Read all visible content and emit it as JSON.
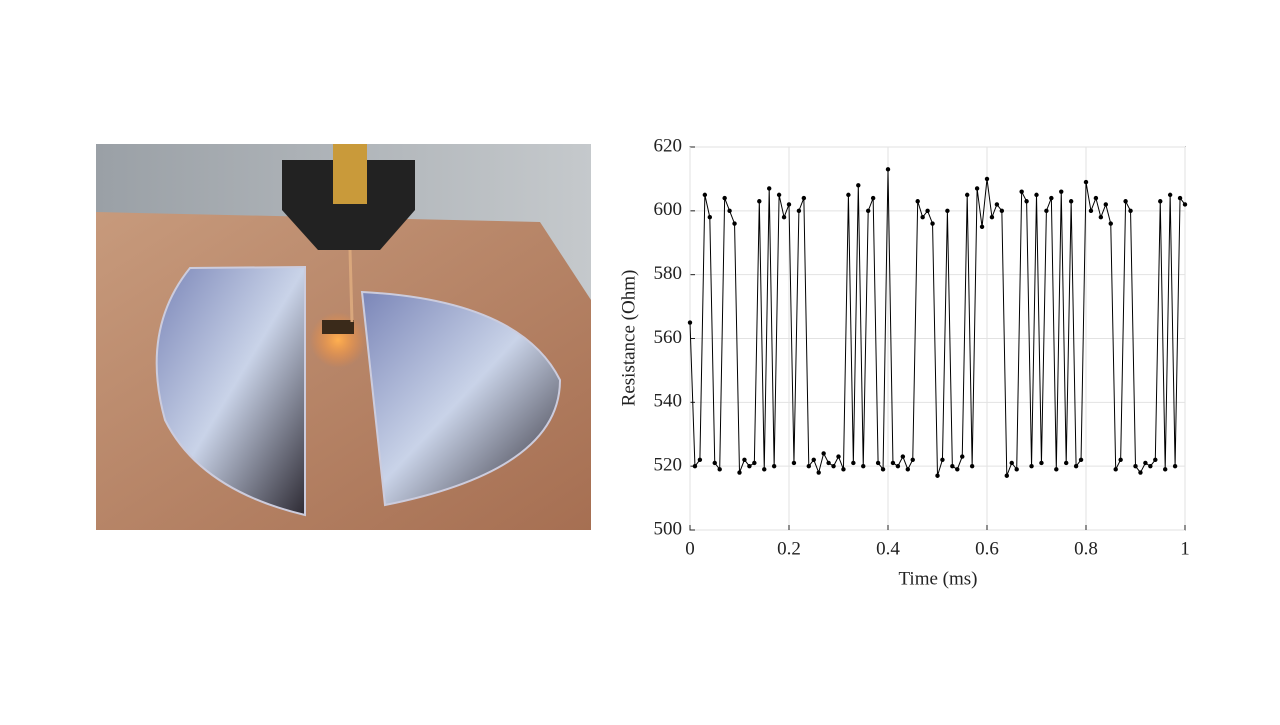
{
  "chart_data": {
    "type": "line",
    "x_label": "Time (ms)",
    "y_label": "Resistance (Ohm)",
    "color": "#000000",
    "markers": true,
    "grid": true,
    "xlim": [
      0,
      1
    ],
    "xticks": [
      0,
      0.2,
      0.4,
      0.6,
      0.8,
      1
    ],
    "ylim": [
      500,
      620
    ],
    "yticks": [
      500,
      520,
      540,
      560,
      580,
      600,
      620
    ],
    "x": [
      0,
      0.01,
      0.02,
      0.03,
      0.04,
      0.05,
      0.06,
      0.07,
      0.08,
      0.09,
      0.1,
      0.11,
      0.12,
      0.13,
      0.14,
      0.15,
      0.16,
      0.17,
      0.18,
      0.19,
      0.2,
      0.21,
      0.22,
      0.23,
      0.24,
      0.25,
      0.26,
      0.27,
      0.28,
      0.29,
      0.3,
      0.31,
      0.32,
      0.33,
      0.34,
      0.35,
      0.36,
      0.37,
      0.38,
      0.39,
      0.4,
      0.41,
      0.42,
      0.43,
      0.44,
      0.45,
      0.46,
      0.47,
      0.48,
      0.49,
      0.5,
      0.51,
      0.52,
      0.53,
      0.54,
      0.55,
      0.56,
      0.57,
      0.58,
      0.59,
      0.6,
      0.61,
      0.62,
      0.63,
      0.64,
      0.65,
      0.66,
      0.67,
      0.68,
      0.69,
      0.7,
      0.71,
      0.72,
      0.73,
      0.74,
      0.75,
      0.76,
      0.77,
      0.78,
      0.79,
      0.8,
      0.81,
      0.82,
      0.83,
      0.84,
      0.85,
      0.86,
      0.87,
      0.88,
      0.89,
      0.9,
      0.91,
      0.92,
      0.93,
      0.94,
      0.95,
      0.96,
      0.97,
      0.98,
      0.99,
      1
    ],
    "values": [
      565,
      520,
      522,
      605,
      598,
      521,
      519,
      604,
      600,
      596,
      518,
      522,
      520,
      521,
      603,
      519,
      607,
      520,
      605,
      598,
      602,
      521,
      600,
      604,
      520,
      522,
      518,
      524,
      521,
      520,
      523,
      519,
      605,
      521,
      608,
      520,
      600,
      604,
      521,
      519,
      613,
      521,
      520,
      523,
      519,
      522,
      603,
      598,
      600,
      596,
      517,
      522,
      600,
      520,
      519,
      523,
      605,
      520,
      607,
      595,
      610,
      598,
      602,
      600,
      517,
      521,
      519,
      606,
      603,
      520,
      605,
      521,
      600,
      604,
      519,
      606,
      521,
      603,
      520,
      522,
      609,
      600,
      604,
      598,
      602,
      596,
      519,
      522,
      603,
      600,
      520,
      518,
      521,
      520,
      522,
      603,
      519,
      605,
      520,
      604,
      602
    ]
  }
}
